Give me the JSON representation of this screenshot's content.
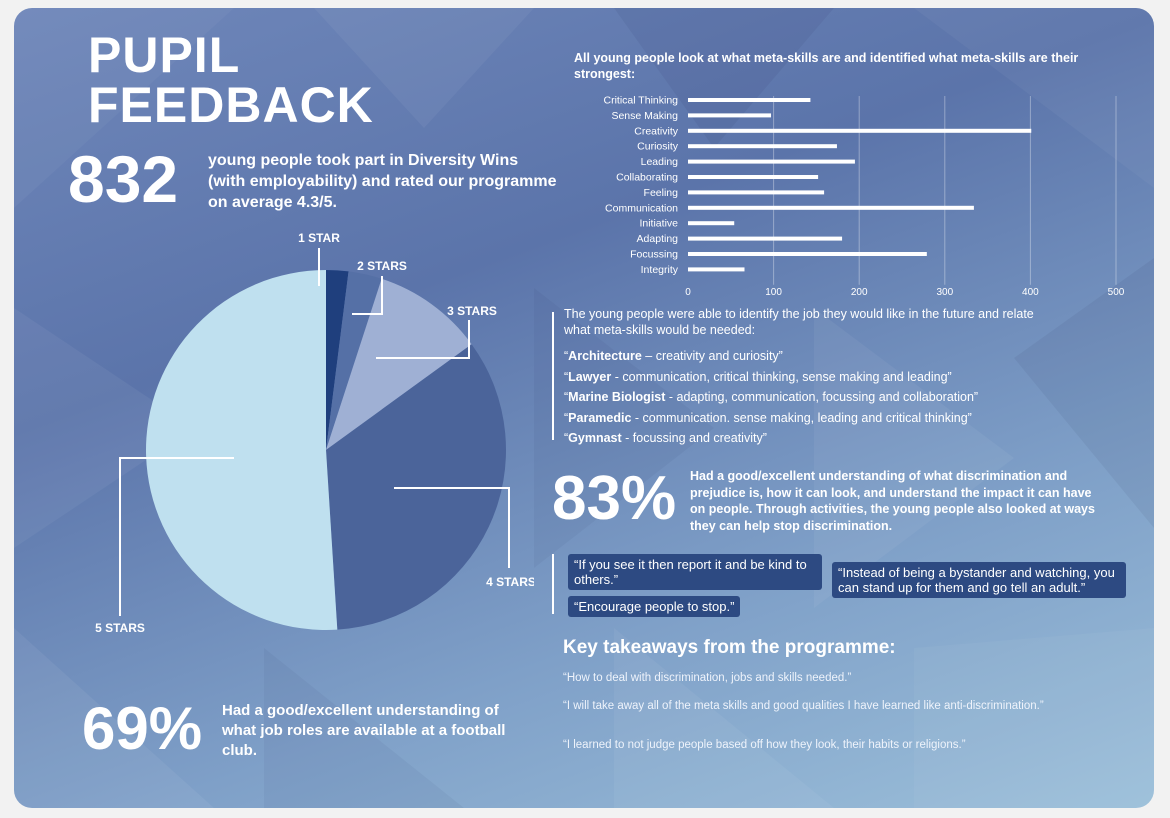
{
  "title": {
    "line1": "PUPIL",
    "line2": "FEEDBACK"
  },
  "participation": {
    "number": "832",
    "text": "young people took part in Diversity Wins (with employability) and rated our programme on average 4.3/5."
  },
  "pie": {
    "labels": [
      "1 STAR",
      "2 STARS",
      "3 STARS",
      "4 STARS",
      "5 STARS"
    ],
    "values": [
      2,
      3,
      10,
      34,
      51
    ],
    "colors": [
      "#1f3f7d",
      "#5570a6",
      "#9fb0d4",
      "#4b649a",
      "#bfe0ef"
    ]
  },
  "chart_data": {
    "type": "bar",
    "orientation": "horizontal",
    "title": "All young people look at what meta-skills are and identified what meta-skills are their strongest:",
    "categories": [
      "Critical Thinking",
      "Sense Making",
      "Creativity",
      "Curiosity",
      "Leading",
      "Collaborating",
      "Feeling",
      "Communication",
      "Initiative",
      "Adapting",
      "Focussing",
      "Integrity"
    ],
    "values": [
      143,
      97,
      401,
      174,
      195,
      152,
      159,
      334,
      54,
      180,
      279,
      66
    ],
    "xlim": [
      0,
      500
    ],
    "ticks": [
      "0",
      "100",
      "200",
      "300",
      "400",
      "500"
    ],
    "grid": true
  },
  "jobs": {
    "intro": "The young people were able to identify the job they would like in the future and relate what meta-skills would be needed:",
    "items": [
      {
        "title": "Architecture",
        "open": "“",
        "detail": " – creativity and curiosity”"
      },
      {
        "title": "Lawyer",
        "open": "“",
        "detail": " - communication, critical thinking, sense making and leading”"
      },
      {
        "title": "Marine Biologist",
        "open": "“",
        "detail": " - adapting, communication, focussing and collaboration”"
      },
      {
        "title": "Paramedic",
        "open": "“",
        "detail": " - communication. sense making, leading and critical thinking”"
      },
      {
        "title": "Gymnast",
        "open": "“",
        "detail": " - focussing and creativity”"
      }
    ]
  },
  "discrimination": {
    "number": "83%",
    "text": "Had a good/excellent understanding of what discrimination and prejudice is, how it can look, and understand the impact it can have on people. Through activities, the young people also looked at ways they can help stop discrimination."
  },
  "quotes": {
    "q1": "“If you see it then report it and be kind to others.”",
    "q2": "“Encourage people to stop.”",
    "q3": "“Instead of being a bystander and watching, you can stand up for them and go tell an adult.”"
  },
  "takeaways": {
    "heading": "Key takeaways from the programme:",
    "t1": "“How to deal with discrimination, jobs and skills needed.”",
    "t2": "“I will take away all of the meta skills and good qualities I have learned like anti-discrimination.”",
    "t3": "“I learned to not judge people based off how they look, their habits or religions.”"
  },
  "jobroles": {
    "number": "69%",
    "text": "Had a good/excellent understanding of what job roles are available at a football club."
  }
}
